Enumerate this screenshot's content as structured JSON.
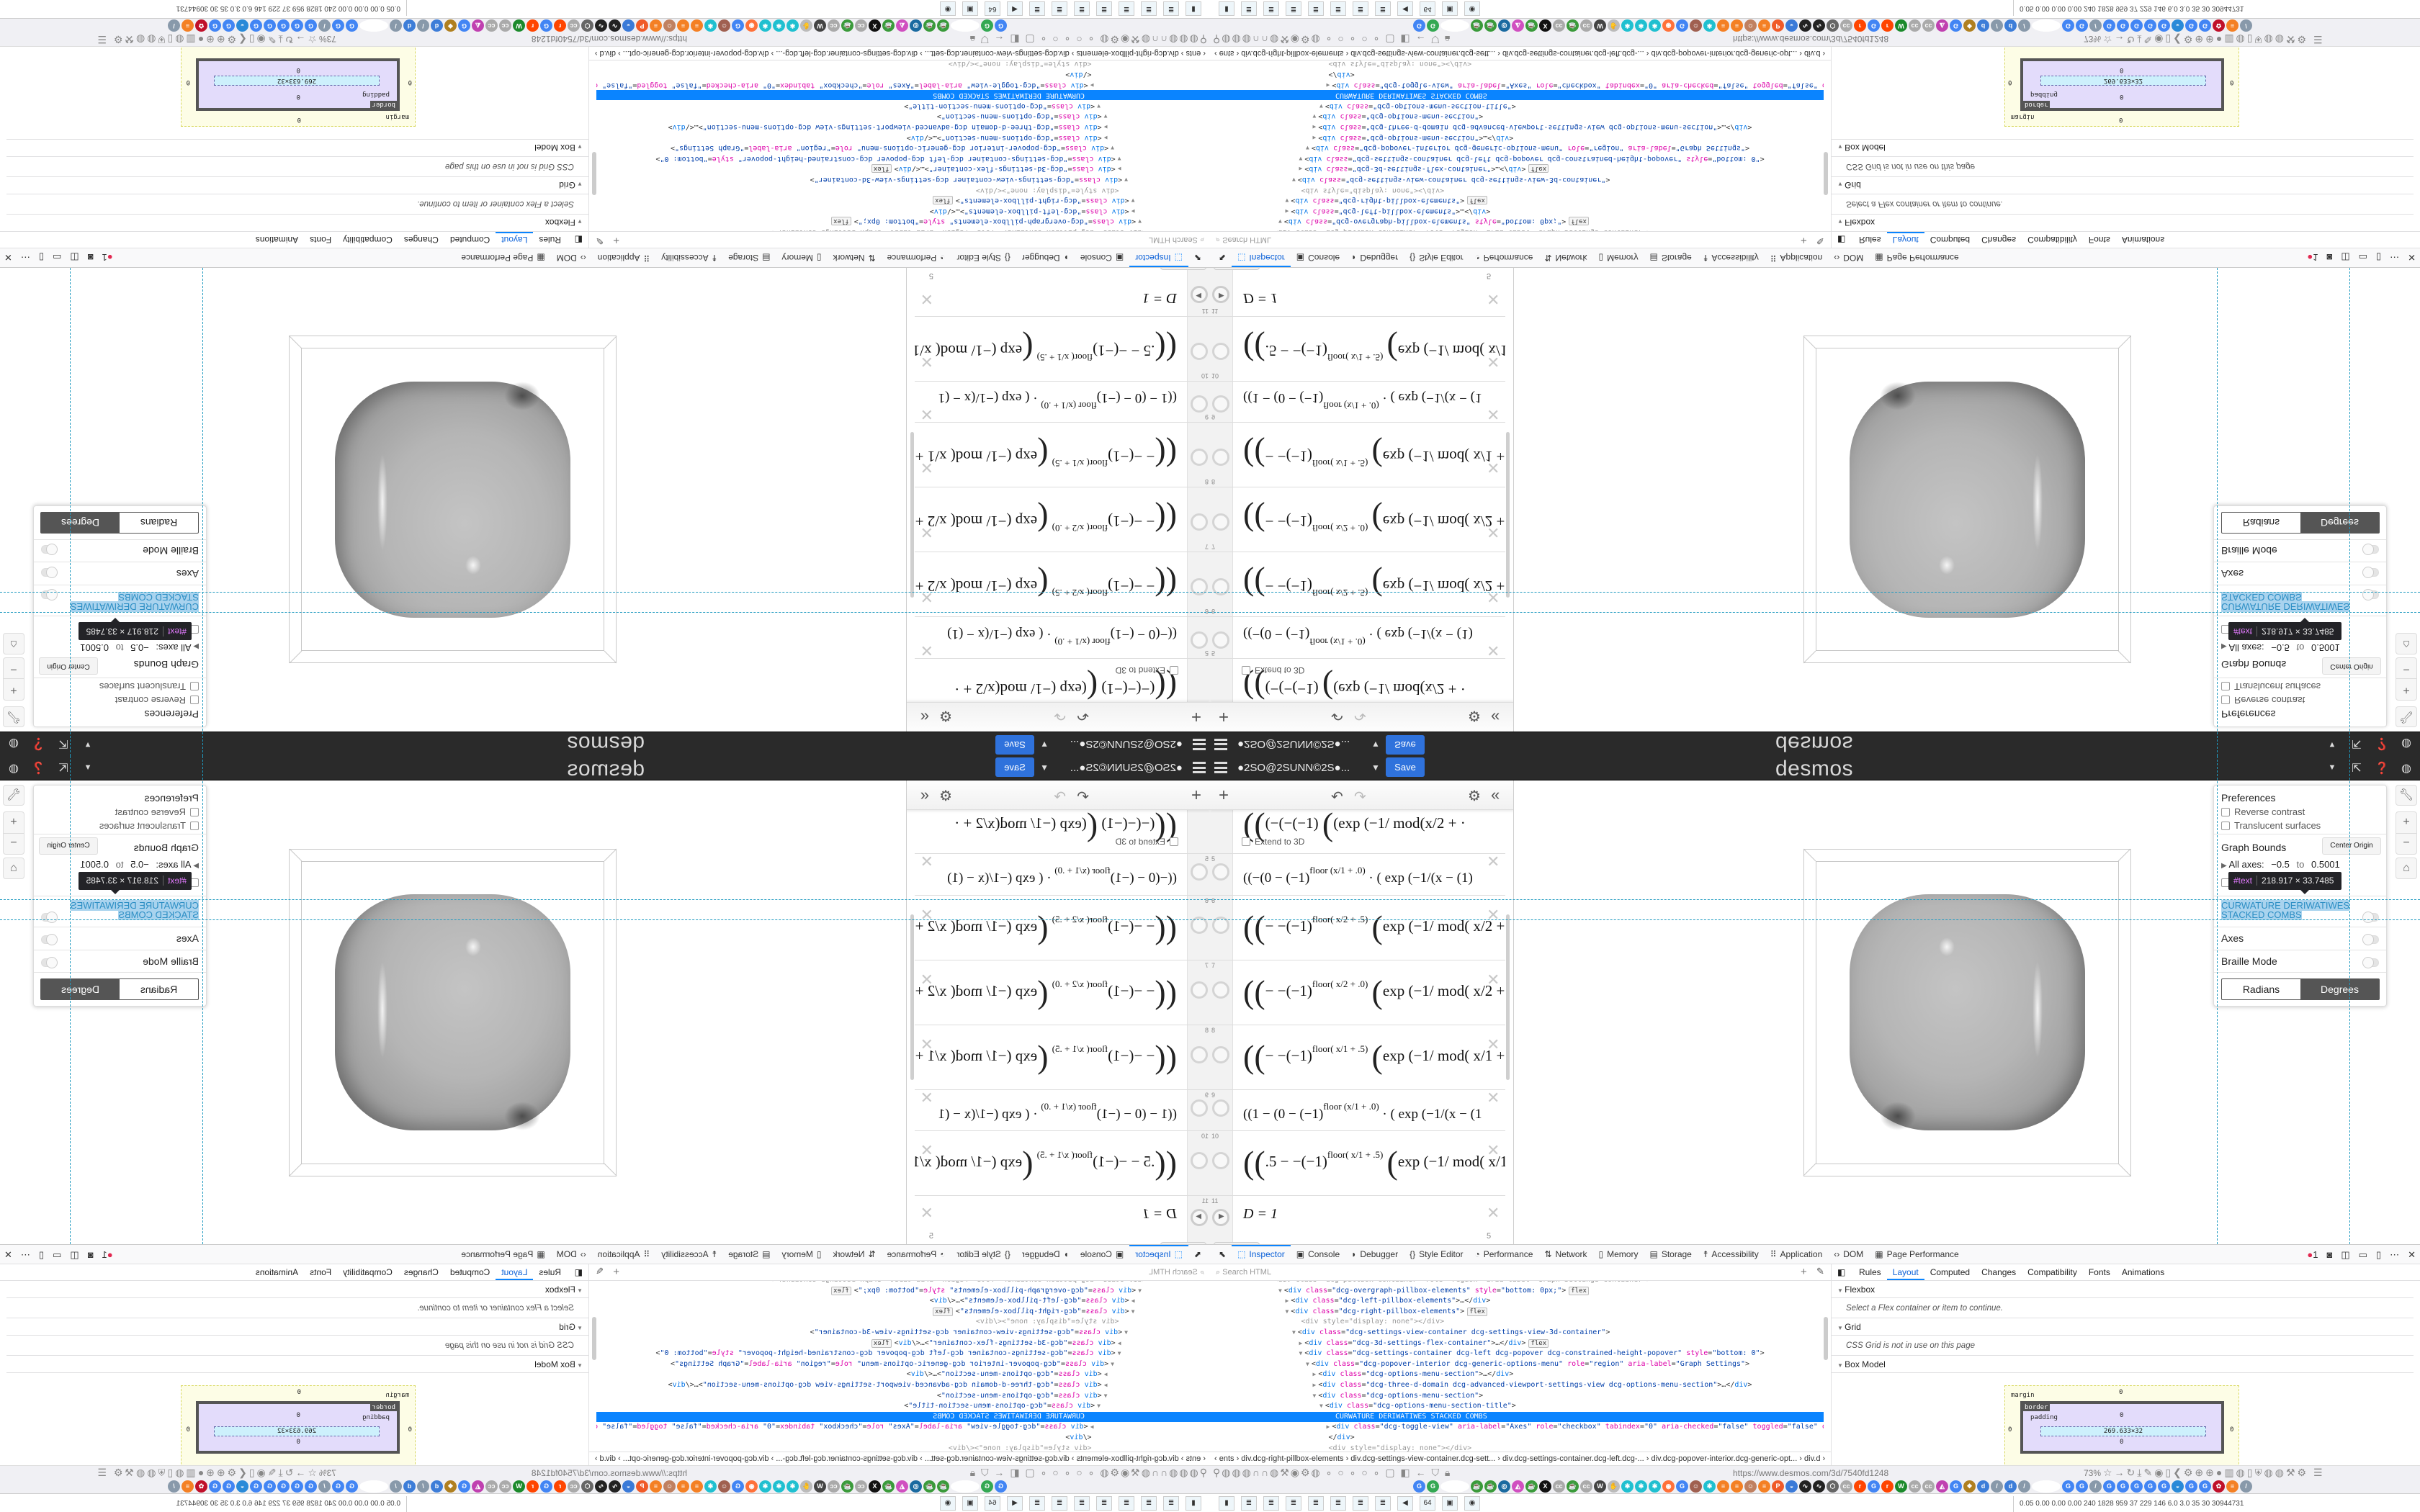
{
  "topbar": {
    "graph_title": "●2SO@2SUNN©2S●...",
    "save_label": "Save",
    "logo": "desmos",
    "icons": [
      "hamburger-icon",
      "caret-down-icon",
      "share-icon",
      "help-icon",
      "globe-icon"
    ],
    "accent": "#2f72dc"
  },
  "expressions": {
    "toolbar_icons": [
      "add-icon",
      "undo-icon",
      "redo-icon",
      "gear-icon",
      "collapse-icon"
    ],
    "partial_top": {
      "pre": "(−(−(−1)",
      "post": "(exp (−1/ mod(x/2 + ·",
      "extend_label": "Extend to 3D"
    },
    "items": [
      {
        "num": "5",
        "tall": false,
        "pre": "((−(0 − (−1)",
        "sup": "floor (x/1 + .0)",
        "post": "· ( exp (−1/(x − (1)"
      },
      {
        "num": "6",
        "tall": true,
        "pre": "− −(−1)",
        "sup": "floor( x/2 + .5)",
        "post": "exp (−1/ mod( x/2 +"
      },
      {
        "num": "7",
        "tall": true,
        "pre": "− −(−1)",
        "sup": "floor( x/2 + .0)",
        "post": "exp (−1/ mod( x/2 +"
      },
      {
        "num": "8",
        "tall": true,
        "pre": "− −(−1)",
        "sup": "floor( x/1 + .5)",
        "post": "exp (−1/ mod( x/1 +"
      },
      {
        "num": "9",
        "tall": false,
        "pre": "((1 − (0 − (−1)",
        "sup": "floor (x/1 + .0)",
        "post": "· ( exp (−1/(x − (1"
      },
      {
        "num": "10",
        "tall": true,
        "pre": ".5 − −(−1)",
        "sup": "floor( x/1 + .5)",
        "post": "exp (−1/ mod( x/1"
      }
    ],
    "slider_item": {
      "num": "11",
      "expr": "D = 1",
      "max_label": "5",
      "min": -5,
      "max": 5,
      "value": 1
    }
  },
  "settings": {
    "preferences": "Preferences",
    "reverse_contrast": "Reverse contrast",
    "translucent_surfaces": "Translucent surfaces",
    "graph_bounds": "Graph Bounds",
    "center_origin": "Center Origin",
    "all_axes": "All axes:",
    "axes_min": "−0.5",
    "to": "to",
    "axes_max": "0.5001",
    "tooltip_node": "#text",
    "tooltip_size": "218.917 × 33.7485",
    "section_title_1": "CURWATURE DERIWATIWES",
    "section_title_2": "STACKED COMBS",
    "axes": "Axes",
    "braille_mode": "Braille Mode",
    "radians": "Radians",
    "degrees": "Degrees",
    "angle_selected": "Degrees",
    "side_buttons": [
      "wrench-icon",
      "zoom-in-icon",
      "zoom-out-icon",
      "home-icon"
    ]
  },
  "devtools": {
    "tabs": [
      {
        "icon": "⬚",
        "label": "Inspector",
        "active": true
      },
      {
        "icon": "▣",
        "label": "Console"
      },
      {
        "icon": "◗",
        "label": "Debugger"
      },
      {
        "icon": "{}",
        "label": "Style Editor"
      },
      {
        "icon": "◔",
        "label": "Performance"
      },
      {
        "icon": "⇅",
        "label": "Network"
      },
      {
        "icon": "▯",
        "label": "Memory"
      },
      {
        "icon": "▤",
        "label": "Storage"
      },
      {
        "icon": "☨",
        "label": "Accessibility"
      },
      {
        "icon": "⠿",
        "label": "Application"
      },
      {
        "icon": "‹›",
        "label": "DOM"
      },
      {
        "icon": "▦",
        "label": "Page Performance"
      }
    ],
    "error_count": "1",
    "search_placeholder": "Search HTML",
    "html_lines": [
      {
        "indent": 9,
        "tw": "",
        "text": "<div class=\"dcg-pillbox-container\" role=\"region\" aria-label=\"Graph Settings Container\">",
        "dim": true
      },
      {
        "indent": 10,
        "tw": "▼",
        "text": "<div class=\"dcg-overgraph-pillbox-elements\" style=\"bottom: 0px;\">",
        "badge": "flex"
      },
      {
        "indent": 11,
        "tw": "▶",
        "text": "<div class=\"dcg-left-pillbox-elements\">…</div>"
      },
      {
        "indent": 11,
        "tw": "▼",
        "text": "<div class=\"dcg-right-pillbox-elements\">",
        "badge": "flex"
      },
      {
        "indent": 13,
        "tw": "",
        "text": "<div style=\"display: none\"></div>",
        "dim": true
      },
      {
        "indent": 12,
        "tw": "▼",
        "text": "<div class=\"dcg-settings-view-container dcg-settings-view-3d-container\">"
      },
      {
        "indent": 13,
        "tw": "▶",
        "text": "<div class=\"dcg-3d-settings-flex-container\">…</div>",
        "badge": "flex"
      },
      {
        "indent": 13,
        "tw": "▼",
        "text": "<div class=\"dcg-settings-container dcg-left dcg-popover dcg-constrained-height-popover\" style=\"bottom: 0\">"
      },
      {
        "indent": 14,
        "tw": "▼",
        "text": "<div class=\"dcg-popover-interior dcg-generic-options-menu\" role=\"region\" aria-label=\"Graph Settings\">"
      },
      {
        "indent": 15,
        "tw": "▶",
        "text": "<div class=\"dcg-options-menu-section\">…</div>"
      },
      {
        "indent": 15,
        "tw": "▶",
        "text": "<div class=\"dcg-three-d-domain dcg-advanced-viewport-settings-view dcg-options-menu-section\">…</div>"
      },
      {
        "indent": 15,
        "tw": "▼",
        "text": "<div class=\"dcg-options-menu-section\">"
      },
      {
        "indent": 16,
        "tw": "▼",
        "text": "<div class=\"dcg-options-menu-section-title\">"
      },
      {
        "indent": 18,
        "tw": "",
        "text": "CURWATURE DERIWATIWES STACKED COMBS",
        "selected": true
      },
      {
        "indent": 17,
        "tw": "▶",
        "text": "<div class=\"dcg-toggle-view\" aria-label=\"Axes\" role=\"checkbox\" tabindex=\"0\" aria-checked=\"false\" toggled=\"false\" ontap=\"\">…</div>"
      },
      {
        "indent": 17,
        "tw": "",
        "text": "</div>"
      },
      {
        "indent": 17,
        "tw": "",
        "text": "<div style=\"display: none\"></div>",
        "dim": true
      }
    ],
    "breadcrumb": "‹  ents  ›  div.dcg-right-pillbox-elements  ›  div.dcg-settings-view-container.dcg-sett...  ›  div.dcg-settings-container.dcg-left.dcg-...  ›  div.dcg-popover-interior.dcg-generic-opt...  ›  div.d  ›",
    "side_tabs": [
      {
        "label": "Rules"
      },
      {
        "label": "Layout",
        "active": true
      },
      {
        "label": "Computed"
      },
      {
        "label": "Changes"
      },
      {
        "label": "Compatibility"
      },
      {
        "label": "Fonts"
      },
      {
        "label": "Animations"
      }
    ],
    "flexbox": "Flexbox",
    "flexbox_msg": "Select a Flex container or item to continue.",
    "grid": "Grid",
    "grid_msg": "CSS Grid is not in use on this page",
    "box_model": "Box Model",
    "box": {
      "margin_label": "margin",
      "border_label": "border",
      "padding_label": "padding",
      "zero": "0",
      "content": "269.633×32"
    }
  },
  "browser": {
    "url": "https://www.desmos.com/3d/7540fd1248",
    "zoom": "73%",
    "bookmarks": [
      {
        "t": "G",
        "c": "#4285f4"
      },
      {
        "t": "G",
        "c": "#34a853"
      },
      {
        "t": "",
        "c": "#fff"
      },
      {
        "t": "☕",
        "c": "#3a9a3a"
      },
      {
        "t": "☕",
        "c": "#3a9a3a"
      },
      {
        "t": "◎",
        "c": "#1a6aa0"
      },
      {
        "t": "◭",
        "c": "#d04fc0"
      },
      {
        "t": "☕",
        "c": "#3a9a3a"
      },
      {
        "t": "X",
        "c": "#111"
      },
      {
        "t": "cc",
        "c": "#aaa"
      },
      {
        "t": "☕",
        "c": "#3a9a3a"
      },
      {
        "t": "cc",
        "c": "#aaa"
      },
      {
        "t": "W",
        "c": "#444"
      },
      {
        "t": "✋",
        "c": "#bbb"
      },
      {
        "t": "✱",
        "c": "#20c0d0"
      },
      {
        "t": "✱",
        "c": "#20c0d0"
      },
      {
        "t": "✱",
        "c": "#20c0d0"
      },
      {
        "t": "◉",
        "c": "#ff7139"
      },
      {
        "t": "G",
        "c": "#4285f4"
      },
      {
        "t": "☺",
        "c": "#a06050"
      },
      {
        "t": "✱",
        "c": "#20c0d0"
      },
      {
        "t": "≡",
        "c": "#f48024"
      },
      {
        "t": "≡",
        "c": "#f48024"
      },
      {
        "t": "☺",
        "c": "#c08060"
      },
      {
        "t": "≡",
        "c": "#f48024"
      },
      {
        "t": "P",
        "c": "#f05a28"
      },
      {
        "t": "◒",
        "c": "#3a7ad8"
      },
      {
        "t": "∿",
        "c": "#222"
      },
      {
        "t": "∿",
        "c": "#222"
      },
      {
        "t": "⬡",
        "c": "#666"
      },
      {
        "t": "cc",
        "c": "#aaa"
      },
      {
        "t": "r",
        "c": "#ff4500"
      },
      {
        "t": "G",
        "c": "#4285f4"
      },
      {
        "t": "r",
        "c": "#ff4500"
      },
      {
        "t": "W",
        "c": "#1b8a2b"
      },
      {
        "t": "cc",
        "c": "#aaa"
      },
      {
        "t": "cc",
        "c": "#aaa"
      },
      {
        "t": "◭",
        "c": "#c040b0"
      },
      {
        "t": "G",
        "c": "#4285f4"
      },
      {
        "t": "❖",
        "c": "#b08020"
      },
      {
        "t": "d",
        "c": "#3d7dd8"
      },
      {
        "t": "/",
        "c": "#8899aa"
      },
      {
        "t": "d",
        "c": "#3d7dd8"
      },
      {
        "t": "/",
        "c": "#8899aa"
      },
      {
        "t": "",
        "c": "#fff"
      },
      {
        "t": "G",
        "c": "#4285f4"
      },
      {
        "t": "G",
        "c": "#4285f4"
      },
      {
        "t": "/",
        "c": "#8899aa"
      },
      {
        "t": "G",
        "c": "#4285f4"
      },
      {
        "t": "G",
        "c": "#4285f4"
      },
      {
        "t": "G",
        "c": "#4285f4"
      },
      {
        "t": "G",
        "c": "#4285f4"
      },
      {
        "t": "G",
        "c": "#4285f4"
      },
      {
        "t": "◒",
        "c": "#2a8ad8"
      },
      {
        "t": "G",
        "c": "#4285f4"
      },
      {
        "t": "G",
        "c": "#4285f4"
      },
      {
        "t": "✿",
        "c": "#c0102a"
      },
      {
        "t": "≡",
        "c": "#f48024"
      },
      {
        "t": "/",
        "c": "#8899aa"
      }
    ],
    "taskbar": [
      {
        "t": "▮",
        "name": "terminal-app"
      },
      {
        "t": "≣",
        "name": "notepad-app"
      },
      {
        "t": "≣",
        "name": "notepad-app"
      },
      {
        "t": "≣",
        "name": "notepad-app"
      },
      {
        "t": "≣",
        "name": "notepad-app"
      },
      {
        "t": "≣",
        "name": "notepad-app"
      },
      {
        "t": "≣",
        "name": "notepad-app"
      },
      {
        "t": "≣",
        "name": "notepad-app"
      },
      {
        "t": "◀",
        "name": "volume-app"
      },
      {
        "t": "64",
        "name": "floppy-app"
      },
      {
        "t": "▣",
        "name": "monitor-app"
      },
      {
        "t": "◉",
        "name": "firefox-app"
      }
    ],
    "tray": "0.05  0.00  0.00  0.00  240  1828  959   37   229   146   6.0   3.0   35   30  30944731"
  }
}
